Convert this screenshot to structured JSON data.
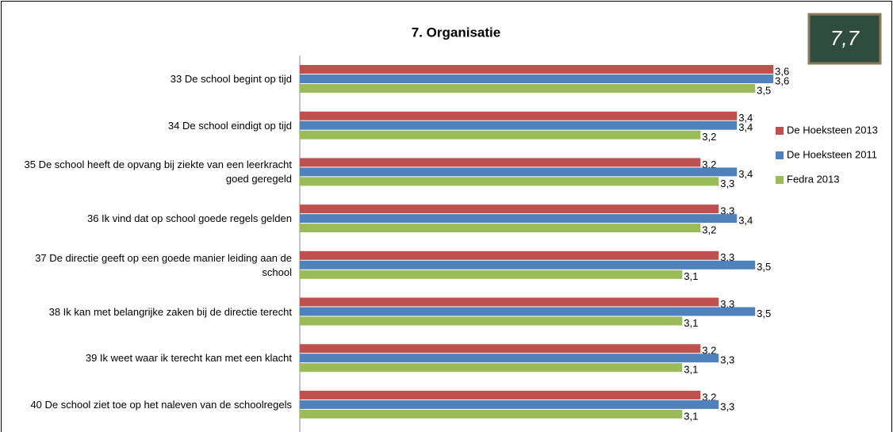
{
  "chart_data": {
    "type": "bar",
    "orientation": "horizontal",
    "title": "7. Organisatie",
    "badge": "7,7",
    "categories": [
      "33 De school begint op tijd",
      "34 De school eindigt op tijd",
      "35 De school heeft de opvang bij ziekte van een leerkracht goed geregeld",
      "36 Ik vind dat op school goede regels gelden",
      "37 De directie geeft op een goede manier leiding aan de school",
      "38 Ik kan met belangrijke zaken bij de directie terecht",
      "39 Ik weet waar ik terecht kan met een klacht",
      "40 De school ziet toe op het naleven van de schoolregels"
    ],
    "series": [
      {
        "name": "De Hoeksteen 2013",
        "color": "#c0504d",
        "values": [
          3.6,
          3.4,
          3.2,
          3.3,
          3.3,
          3.3,
          3.2,
          3.2
        ],
        "value_labels": [
          "3,6",
          "3,4",
          "3,2",
          "3,3",
          "3,3",
          "3,3",
          "3,2",
          "3,2"
        ]
      },
      {
        "name": "De Hoeksteen 2011",
        "color": "#4f81bd",
        "values": [
          3.6,
          3.4,
          3.4,
          3.4,
          3.5,
          3.5,
          3.3,
          3.3
        ],
        "value_labels": [
          "3,6",
          "3,4",
          "3,4",
          "3,4",
          "3,5",
          "3,5",
          "3,3",
          "3,3"
        ]
      },
      {
        "name": "Fedra 2013",
        "color": "#9bbb59",
        "values": [
          3.5,
          3.2,
          3.3,
          3.2,
          3.1,
          3.1,
          3.1,
          3.1
        ],
        "value_labels": [
          "3,5",
          "3,2",
          "3,3",
          "3,2",
          "3,1",
          "3,1",
          "3,1",
          "3,1"
        ]
      }
    ],
    "xlim": [
      1,
      4
    ],
    "legend": "right"
  }
}
